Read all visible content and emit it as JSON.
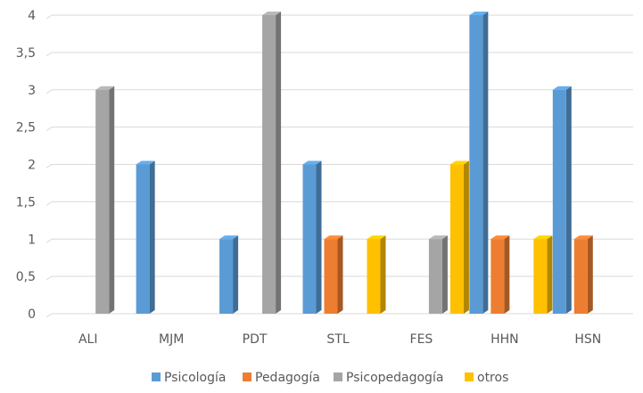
{
  "chart_data": {
    "type": "bar",
    "style": "3d-clustered-column",
    "categories": [
      "ALI",
      "MJM",
      "PDT",
      "STL",
      "FES",
      "HHN",
      "HSN"
    ],
    "series": [
      {
        "name": "Psicología",
        "values": [
          0,
          2,
          1,
          2,
          0,
          4,
          3
        ],
        "color": "#5B9BD5"
      },
      {
        "name": "Pedagogía",
        "values": [
          0,
          0,
          0,
          1,
          0,
          1,
          1
        ],
        "color": "#ED7D31"
      },
      {
        "name": "Psicopedagogía",
        "values": [
          3,
          0,
          4,
          0,
          1,
          0,
          0
        ],
        "color": "#A5A5A5"
      },
      {
        "name": "otros",
        "values": [
          0,
          0,
          0,
          1,
          2,
          1,
          0
        ],
        "color": "#FFC000"
      }
    ],
    "y_ticks": [
      "0",
      "0,5",
      "1",
      "1,5",
      "2",
      "2,5",
      "3",
      "3,5",
      "4"
    ],
    "ylim": [
      0,
      4
    ],
    "grid": true,
    "grid_color": "#D9D9D9",
    "legend_position": "bottom",
    "title": "",
    "xlabel": "",
    "ylabel": ""
  }
}
